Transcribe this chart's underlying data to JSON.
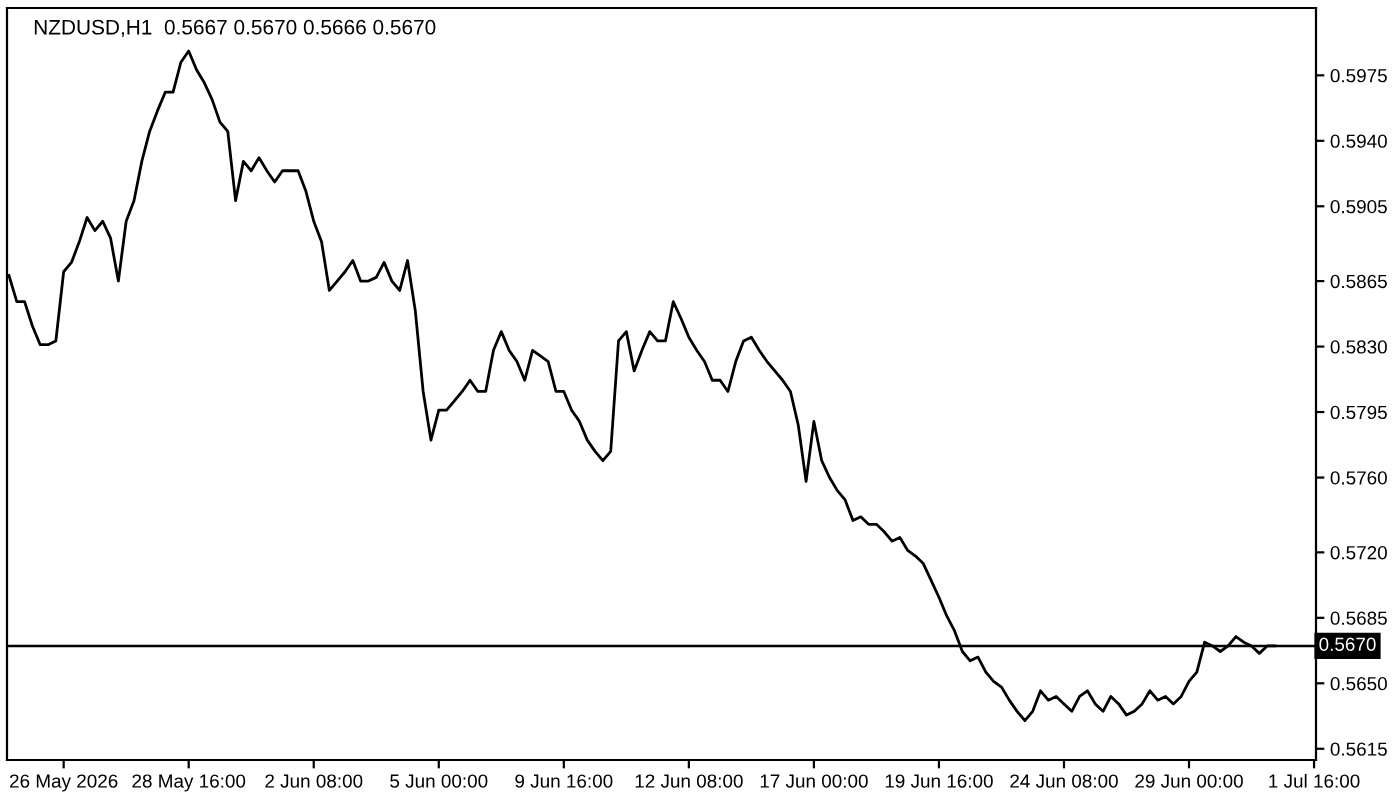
{
  "chart_data": {
    "type": "line",
    "title": "NZDUSD,H1  0.5667 0.5670 0.5666 0.5670",
    "categories": [
      null,
      null,
      null,
      null,
      null,
      null,
      null,
      "26 May 2026",
      null,
      null,
      null,
      null,
      null,
      null,
      null,
      null,
      null,
      null,
      null,
      null,
      null,
      null,
      null,
      "28 May 16:00",
      null,
      null,
      null,
      null,
      null,
      null,
      null,
      null,
      null,
      null,
      null,
      null,
      null,
      null,
      null,
      "2 Jun 08:00",
      null,
      null,
      null,
      null,
      null,
      null,
      null,
      null,
      null,
      null,
      null,
      null,
      null,
      null,
      null,
      "5 Jun 00:00",
      null,
      null,
      null,
      null,
      null,
      null,
      null,
      null,
      null,
      null,
      null,
      null,
      null,
      null,
      null,
      "9 Jun 16:00",
      null,
      null,
      null,
      null,
      null,
      null,
      null,
      null,
      null,
      null,
      null,
      null,
      null,
      null,
      null,
      "12 Jun 08:00",
      null,
      null,
      null,
      null,
      null,
      null,
      null,
      null,
      null,
      null,
      null,
      null,
      null,
      null,
      null,
      "17 Jun 00:00",
      null,
      null,
      null,
      null,
      null,
      null,
      null,
      null,
      null,
      null,
      null,
      null,
      null,
      null,
      null,
      "19 Jun 16:00",
      null,
      null,
      null,
      null,
      null,
      null,
      null,
      null,
      null,
      null,
      null,
      null,
      null,
      null,
      null,
      "24 Jun 08:00",
      null,
      null,
      null,
      null,
      null,
      null,
      null,
      null,
      null,
      null,
      null,
      null,
      null,
      null,
      null,
      "29 Jun 00:00",
      null,
      null,
      null,
      null,
      null,
      null,
      null,
      null,
      null,
      null,
      null,
      null,
      null,
      null,
      null,
      "1 Jul 16:00"
    ],
    "series": [
      {
        "color": "#000000",
        "values": [
          0.5868,
          0.5854,
          0.5854,
          0.5841,
          0.5831,
          0.5831,
          0.5833,
          0.587,
          0.5875,
          0.5886,
          0.5899,
          0.5892,
          0.5897,
          0.5888,
          0.5865,
          0.5897,
          0.5908,
          0.5929,
          0.5945,
          0.5956,
          0.5966,
          0.5966,
          0.5982,
          0.5988,
          0.5978,
          0.5971,
          0.5962,
          0.595,
          0.5945,
          0.5908,
          0.5929,
          0.5924,
          0.5931,
          0.5924,
          0.5918,
          0.5924,
          0.5924,
          0.5924,
          0.5913,
          0.5897,
          0.5886,
          0.586,
          0.5865,
          0.587,
          0.5876,
          0.5865,
          0.5865,
          0.5867,
          0.5875,
          0.5865,
          0.586,
          0.5876,
          0.5849,
          0.5806,
          0.578,
          0.5796,
          0.5796,
          0.5801,
          0.5806,
          0.5812,
          0.5806,
          0.5806,
          0.5828,
          0.5838,
          0.5828,
          0.5822,
          0.5812,
          0.5828,
          0.5825,
          0.5822,
          0.5806,
          0.5806,
          0.5796,
          0.579,
          0.578,
          0.5774,
          0.5769,
          0.5774,
          0.5833,
          0.5838,
          0.5817,
          0.5828,
          0.5838,
          0.5833,
          0.5833,
          0.5854,
          0.5845,
          0.5835,
          0.5828,
          0.5822,
          0.5812,
          0.5812,
          0.5806,
          0.5822,
          0.5833,
          0.5835,
          0.5828,
          0.5822,
          0.5817,
          0.5812,
          0.5806,
          0.5788,
          0.5758,
          0.579,
          0.5769,
          0.576,
          0.5753,
          0.5748,
          0.5737,
          0.5739,
          0.5735,
          0.5735,
          0.5731,
          0.5726,
          0.5728,
          0.5721,
          0.5718,
          0.5714,
          0.5705,
          0.5696,
          0.5686,
          0.5678,
          0.5667,
          0.5662,
          0.5664,
          0.5656,
          0.5651,
          0.5648,
          0.5641,
          0.5635,
          0.563,
          0.5635,
          0.5646,
          0.5641,
          0.5643,
          0.5639,
          0.5635,
          0.5643,
          0.5646,
          0.5639,
          0.5635,
          0.5643,
          0.5639,
          0.5633,
          0.5635,
          0.5639,
          0.5646,
          0.5641,
          0.5643,
          0.5639,
          0.5643,
          0.5651,
          0.5656,
          0.5672,
          0.567,
          0.5667,
          0.567,
          0.5675,
          0.5672,
          0.567,
          0.5666,
          0.567,
          0.567,
          null,
          null,
          null,
          null,
          null
        ]
      }
    ],
    "ylim": [
      0.5609,
      0.6011
    ],
    "yticks": [
      {
        "value": 0.5975,
        "label": "0.5975"
      },
      {
        "value": 0.594,
        "label": "0.5940"
      },
      {
        "value": 0.5905,
        "label": "0.5905"
      },
      {
        "value": 0.5865,
        "label": "0.5865"
      },
      {
        "value": 0.583,
        "label": "0.5830"
      },
      {
        "value": 0.5795,
        "label": "0.5795"
      },
      {
        "value": 0.576,
        "label": "0.5760"
      },
      {
        "value": 0.572,
        "label": "0.5720"
      },
      {
        "value": 0.5685,
        "label": "0.5685"
      },
      {
        "value": 0.565,
        "label": "0.5650"
      },
      {
        "value": 0.5615,
        "label": "0.5615"
      }
    ],
    "ref_lines": [
      {
        "axis": "y",
        "value": 0.567,
        "label": "0.5670",
        "color": "#000000"
      }
    ],
    "grid": false,
    "legend": false
  }
}
